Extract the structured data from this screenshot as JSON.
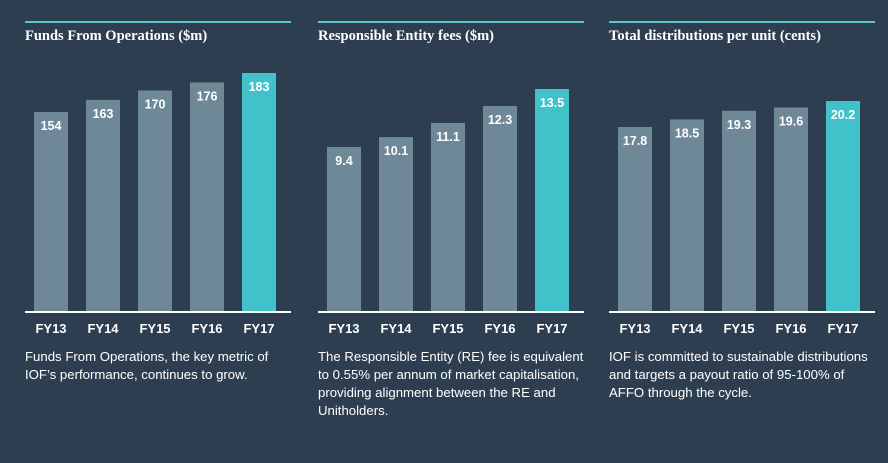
{
  "colors": {
    "background": "#2c3e50",
    "bar": "#6f8898",
    "bar_highlight": "#41c1ca",
    "rule": "#5fc6cf",
    "axis": "#ffffff"
  },
  "panels": [
    {
      "title": "Funds From Operations ($m)",
      "description": "Funds From Operations, the key metric of IOF’s performance, continues to grow."
    },
    {
      "title": "Responsible Entity fees ($m)",
      "description": "The Responsible Entity (RE) fee is equivalent to 0.55% per annum of market capitalisation, providing alignment between the RE and Unitholders."
    },
    {
      "title": "Total distributions per unit (cents)",
      "description": "IOF is committed to sustainable distributions and targets a payout ratio of 95-100% of AFFO through the cycle."
    }
  ],
  "chart_data": [
    {
      "type": "bar",
      "title": "Funds From Operations ($m)",
      "categories": [
        "FY13",
        "FY14",
        "FY15",
        "FY16",
        "FY17"
      ],
      "values": [
        154,
        163,
        170,
        176,
        183
      ],
      "labels": [
        "154",
        "163",
        "170",
        "176",
        "183"
      ],
      "highlight_index": 4,
      "xlabel": "",
      "ylabel": "",
      "grid": false
    },
    {
      "type": "bar",
      "title": "Responsible Entity fees ($m)",
      "categories": [
        "FY13",
        "FY14",
        "FY15",
        "FY16",
        "FY17"
      ],
      "values": [
        9.4,
        10.1,
        11.1,
        12.3,
        13.5
      ],
      "labels": [
        "9.4",
        "10.1",
        "11.1",
        "12.3",
        "13.5"
      ],
      "highlight_index": 4,
      "xlabel": "",
      "ylabel": "",
      "grid": false
    },
    {
      "type": "bar",
      "title": "Total distributions per unit (cents)",
      "categories": [
        "FY13",
        "FY14",
        "FY15",
        "FY16",
        "FY17"
      ],
      "values": [
        17.8,
        18.5,
        19.3,
        19.6,
        20.2
      ],
      "labels": [
        "17.8",
        "18.5",
        "19.3",
        "19.6",
        "20.2"
      ],
      "highlight_index": 4,
      "xlabel": "",
      "ylabel": "",
      "grid": false
    }
  ]
}
